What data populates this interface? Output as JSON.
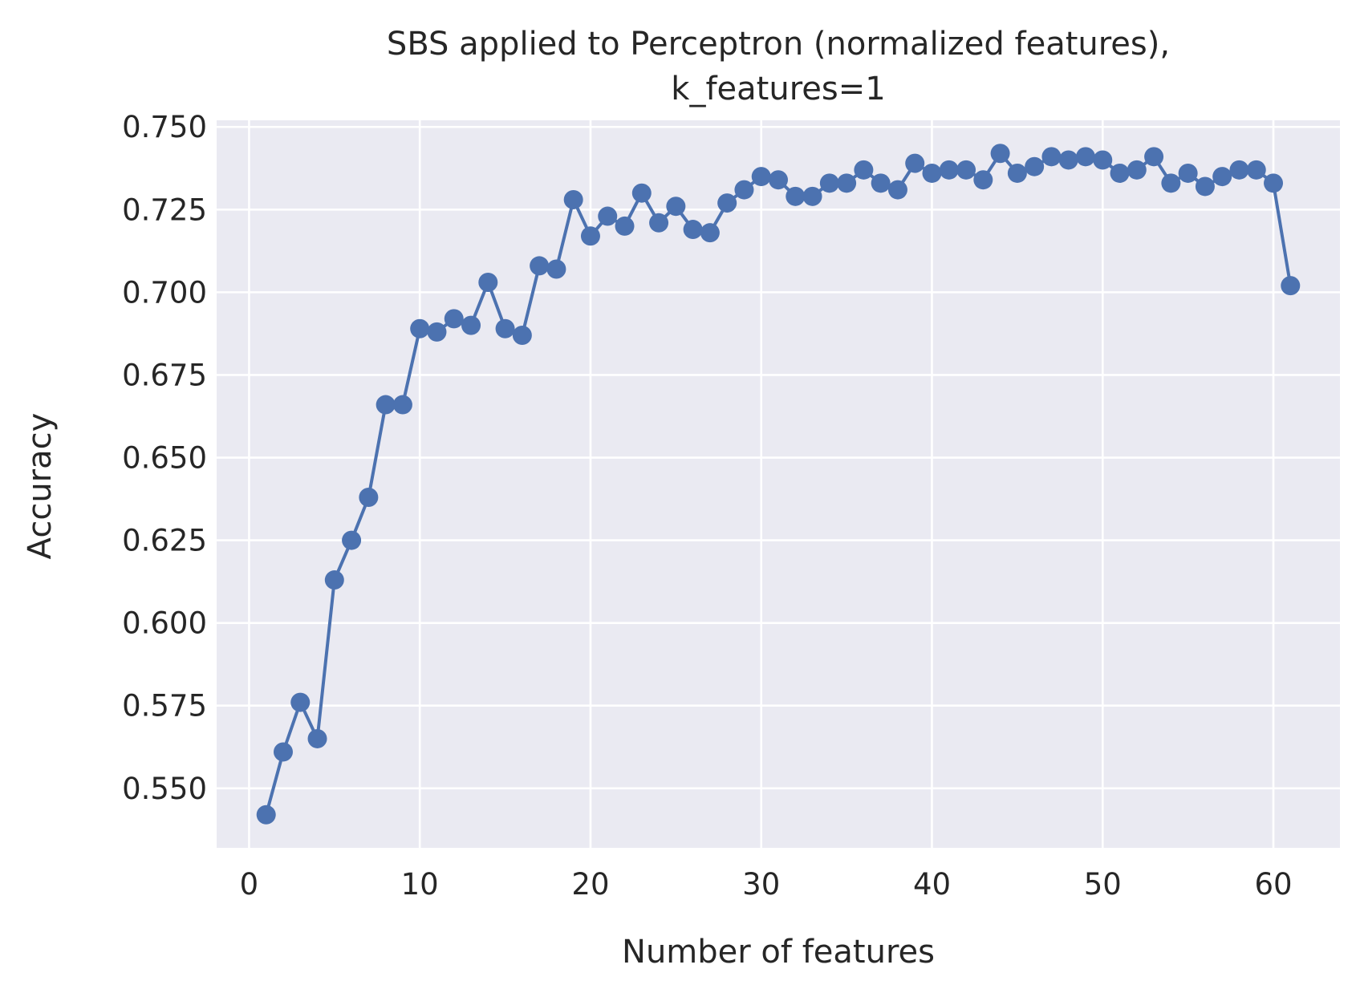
{
  "chart_data": {
    "type": "line",
    "title": [
      "SBS applied to Perceptron (normalized features),",
      "k_features=1"
    ],
    "xlabel": "Number of features",
    "ylabel": "Accuracy",
    "xlim": [
      -1.9,
      63.9
    ],
    "ylim": [
      0.532,
      0.752
    ],
    "xticks": [
      0,
      10,
      20,
      30,
      40,
      50,
      60
    ],
    "xtick_labels": [
      "0",
      "10",
      "20",
      "30",
      "40",
      "50",
      "60"
    ],
    "yticks": [
      0.55,
      0.575,
      0.6,
      0.625,
      0.65,
      0.675,
      0.7,
      0.725,
      0.75
    ],
    "ytick_labels": [
      "0.550",
      "0.575",
      "0.600",
      "0.625",
      "0.650",
      "0.675",
      "0.700",
      "0.725",
      "0.750"
    ],
    "grid": true,
    "background": "#eaeaf2",
    "line_color": "#4c72b0",
    "marker": "circle",
    "x": [
      1,
      2,
      3,
      4,
      5,
      6,
      7,
      8,
      9,
      10,
      11,
      12,
      13,
      14,
      15,
      16,
      17,
      18,
      19,
      20,
      21,
      22,
      23,
      24,
      25,
      26,
      27,
      28,
      29,
      30,
      31,
      32,
      33,
      34,
      35,
      36,
      37,
      38,
      39,
      40,
      41,
      42,
      43,
      44,
      45,
      46,
      47,
      48,
      49,
      50,
      51,
      52,
      53,
      54,
      55,
      56,
      57,
      58,
      59,
      60,
      61
    ],
    "y": [
      0.542,
      0.561,
      0.576,
      0.565,
      0.613,
      0.625,
      0.638,
      0.666,
      0.666,
      0.689,
      0.688,
      0.692,
      0.69,
      0.703,
      0.689,
      0.687,
      0.708,
      0.707,
      0.728,
      0.717,
      0.723,
      0.72,
      0.73,
      0.721,
      0.726,
      0.719,
      0.718,
      0.727,
      0.731,
      0.735,
      0.734,
      0.729,
      0.729,
      0.733,
      0.733,
      0.737,
      0.733,
      0.731,
      0.739,
      0.736,
      0.737,
      0.737,
      0.734,
      0.742,
      0.736,
      0.738,
      0.741,
      0.74,
      0.741,
      0.74,
      0.736,
      0.737,
      0.741,
      0.733,
      0.736,
      0.732,
      0.735,
      0.737,
      0.737,
      0.733,
      0.702
    ]
  }
}
